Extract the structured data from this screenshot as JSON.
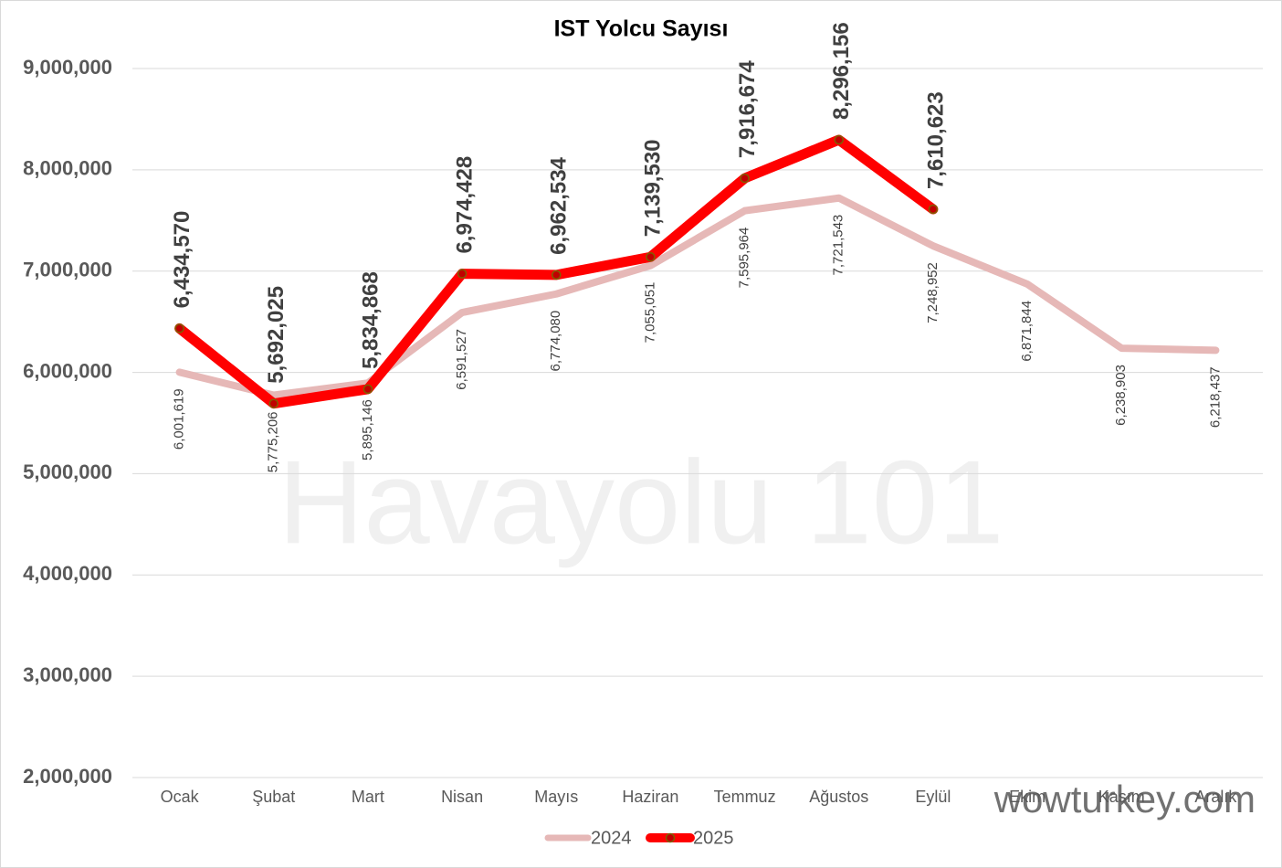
{
  "chart_data": {
    "type": "line",
    "title": "IST Yolcu Sayısı",
    "categories": [
      "Ocak",
      "Şubat",
      "Mart",
      "Nisan",
      "Mayıs",
      "Haziran",
      "Temmuz",
      "Ağustos",
      "Eylül",
      "Ekim",
      "Kasım",
      "Aralık"
    ],
    "series": [
      {
        "name": "2024",
        "color": "#e6b8b7",
        "values": [
          6001619,
          5775206,
          5895146,
          6591527,
          6774080,
          7055051,
          7595964,
          7721543,
          7248952,
          6871844,
          6238903,
          6218437
        ],
        "value_labels": [
          "6,001,619",
          "5,775,206",
          "5,895,146",
          "6,591,527",
          "6,774,080",
          "7,055,051",
          "7,595,964",
          "7,721,543",
          "7,248,952",
          "6,871,844",
          "6,238,903",
          "6,218,437"
        ]
      },
      {
        "name": "2025",
        "color": "#ff0000",
        "values": [
          6434570,
          5692025,
          5834868,
          6974428,
          6962534,
          7139530,
          7916674,
          8296156,
          7610623,
          null,
          null,
          null
        ],
        "value_labels": [
          "6,434,570",
          "5,692,025",
          "5,834,868",
          "6,974,428",
          "6,962,534",
          "7,139,530",
          "7,916,674",
          "8,296,156",
          "7,610,623",
          null,
          null,
          null
        ]
      }
    ],
    "ylim": [
      2000000,
      9000000
    ],
    "yticks": [
      {
        "value": 2000000,
        "label": "2,000,000"
      },
      {
        "value": 3000000,
        "label": "3,000,000"
      },
      {
        "value": 4000000,
        "label": "4,000,000"
      },
      {
        "value": 5000000,
        "label": "5,000,000"
      },
      {
        "value": 6000000,
        "label": "6,000,000"
      },
      {
        "value": 7000000,
        "label": "7,000,000"
      },
      {
        "value": 8000000,
        "label": "8,000,000"
      },
      {
        "value": 9000000,
        "label": "9,000,000"
      }
    ],
    "grid": true,
    "legend": "bottom",
    "watermarks": [
      "Havayolu 101",
      "wowturkey.com"
    ]
  }
}
